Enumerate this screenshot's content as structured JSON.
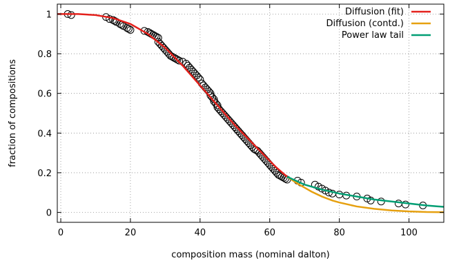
{
  "chart_data": {
    "type": "scatter",
    "title": "",
    "xlabel": "composition mass (nominal dalton)",
    "ylabel": "fraction of compositions",
    "xlim": [
      -1,
      110
    ],
    "ylim": [
      -0.05,
      1.05
    ],
    "x_ticks": [
      0,
      20,
      40,
      60,
      80,
      100
    ],
    "y_ticks": [
      0,
      0.2,
      0.4,
      0.6,
      0.8,
      1
    ],
    "x_tick_labels": [
      "0",
      "20",
      "40",
      "60",
      "80",
      "100"
    ],
    "y_tick_labels": [
      "0",
      "0.2",
      "0.4",
      "0.6",
      "0.8",
      "1"
    ],
    "grid": true,
    "legend_position": "top-right",
    "points": {
      "name": "",
      "color": "#000000",
      "marker": "open-circle",
      "x": [
        2,
        3,
        13,
        14,
        15,
        15.5,
        16,
        17,
        17.5,
        18,
        19,
        19.5,
        20,
        24,
        25,
        25.5,
        26,
        26.5,
        27,
        27.5,
        28,
        28,
        28.5,
        29,
        29.5,
        30,
        30.5,
        31,
        31.5,
        32,
        32.5,
        33,
        33.5,
        34,
        35,
        36,
        36.5,
        37,
        37.5,
        38,
        38.5,
        39,
        39.5,
        40,
        40.5,
        41,
        41.5,
        42,
        42.5,
        43,
        43,
        43.5,
        44,
        44,
        44.5,
        45,
        45,
        45.5,
        46,
        46.5,
        47,
        47.5,
        48,
        48.5,
        49,
        49.5,
        50,
        50.5,
        51,
        51.5,
        52,
        52.5,
        53,
        53.5,
        54,
        54.5,
        55,
        55.5,
        56,
        56.5,
        57,
        57.5,
        58,
        58.5,
        59,
        59.5,
        60,
        60.5,
        61,
        61.5,
        62,
        62.5,
        63,
        63.5,
        64,
        64.5,
        65,
        68,
        69,
        73,
        74,
        75,
        76,
        77,
        78,
        80,
        82,
        85,
        88,
        89,
        92,
        97,
        99,
        104
      ],
      "y": [
        1.0,
        0.995,
        0.985,
        0.975,
        0.97,
        0.965,
        0.96,
        0.95,
        0.945,
        0.94,
        0.93,
        0.925,
        0.92,
        0.915,
        0.91,
        0.905,
        0.9,
        0.895,
        0.89,
        0.885,
        0.88,
        0.86,
        0.85,
        0.84,
        0.83,
        0.82,
        0.81,
        0.8,
        0.79,
        0.785,
        0.78,
        0.775,
        0.77,
        0.765,
        0.76,
        0.75,
        0.74,
        0.73,
        0.72,
        0.71,
        0.7,
        0.69,
        0.68,
        0.67,
        0.65,
        0.64,
        0.63,
        0.62,
        0.61,
        0.6,
        0.59,
        0.58,
        0.57,
        0.56,
        0.55,
        0.54,
        0.53,
        0.52,
        0.51,
        0.5,
        0.49,
        0.48,
        0.47,
        0.46,
        0.45,
        0.44,
        0.43,
        0.42,
        0.41,
        0.4,
        0.39,
        0.38,
        0.37,
        0.36,
        0.35,
        0.34,
        0.33,
        0.32,
        0.315,
        0.31,
        0.3,
        0.29,
        0.28,
        0.27,
        0.26,
        0.25,
        0.24,
        0.23,
        0.22,
        0.21,
        0.2,
        0.19,
        0.185,
        0.18,
        0.175,
        0.17,
        0.165,
        0.16,
        0.15,
        0.14,
        0.13,
        0.12,
        0.11,
        0.1,
        0.095,
        0.09,
        0.085,
        0.08,
        0.07,
        0.06,
        0.055,
        0.045,
        0.04,
        0.035
      ]
    },
    "series": [
      {
        "name": "Diffusion (fit)",
        "color": "#e3201b",
        "x": [
          -1,
          0,
          5,
          10,
          15,
          20,
          25,
          30,
          35,
          40,
          45,
          50,
          55,
          60,
          62,
          64,
          65
        ],
        "y": [
          1.0,
          1.0,
          1.0,
          0.995,
          0.98,
          0.95,
          0.9,
          0.83,
          0.74,
          0.64,
          0.54,
          0.44,
          0.35,
          0.26,
          0.225,
          0.195,
          0.18
        ]
      },
      {
        "name": "Diffusion (contd.)",
        "color": "#e6a00f",
        "x": [
          65,
          68,
          70,
          72,
          75,
          78,
          80,
          85,
          90,
          95,
          100,
          105,
          110
        ],
        "y": [
          0.18,
          0.145,
          0.125,
          0.105,
          0.08,
          0.06,
          0.05,
          0.03,
          0.018,
          0.01,
          0.005,
          0.002,
          0.001
        ]
      },
      {
        "name": "Power law tail",
        "color": "#009e73",
        "x": [
          65,
          70,
          75,
          80,
          85,
          90,
          95,
          100,
          105,
          110
        ],
        "y": [
          0.18,
          0.14,
          0.115,
          0.095,
          0.08,
          0.065,
          0.055,
          0.045,
          0.035,
          0.028
        ]
      }
    ]
  }
}
